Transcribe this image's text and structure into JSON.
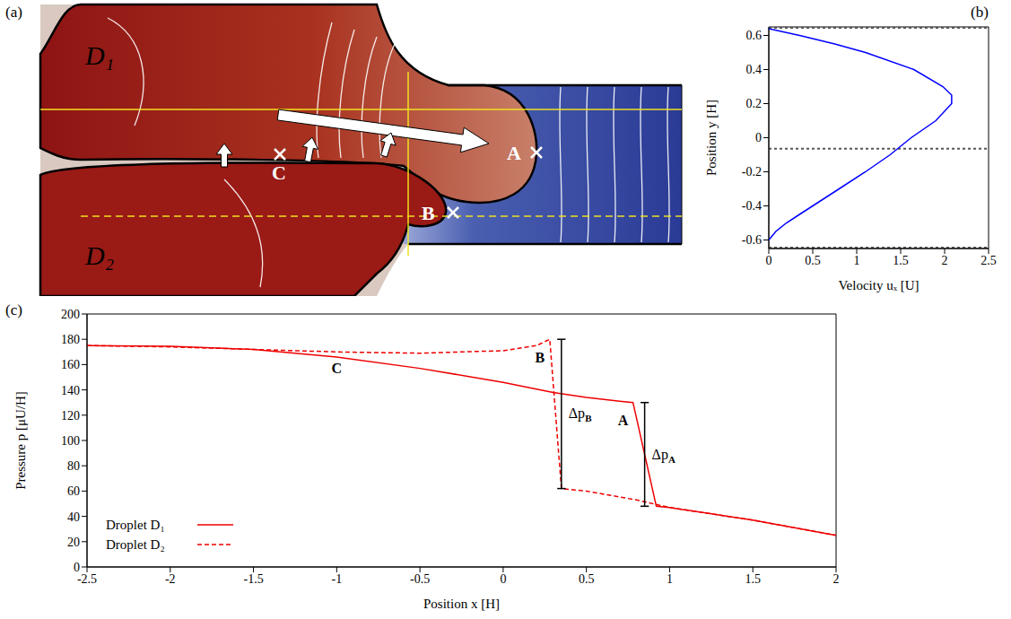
{
  "diagram": {
    "panel": "(a)",
    "labels": [
      {
        "text": "D₁"
      },
      {
        "text": "D₂"
      },
      {
        "text": "A"
      },
      {
        "text": "B"
      },
      {
        "text": "C"
      }
    ]
  },
  "chart_data": [
    {
      "panel": "(b)",
      "type": "line",
      "x_label": "Velocity uₓ [U]",
      "y_label": "Position y [H]",
      "xlim": [
        0,
        2.5
      ],
      "xticks": [
        0,
        0.5,
        1,
        1.5,
        2,
        2.5
      ],
      "ylim": [
        -0.65,
        0.65
      ],
      "yticks": [
        -0.6,
        -0.4,
        -0.2,
        0,
        0.2,
        0.4,
        0.6
      ],
      "reference_lines": [
        0.645,
        -0.065,
        -0.645
      ],
      "series": [
        {
          "color": "#0000ff",
          "line_style": "solid",
          "x": [
            0,
            0.08,
            0.2,
            0.35,
            0.5,
            0.8,
            1.1,
            1.38,
            1.62,
            1.9,
            2.08,
            2.08,
            1.98,
            1.65,
            1.1,
            0.75,
            0.35,
            0
          ],
          "values": [
            -0.6,
            -0.55,
            -0.5,
            -0.45,
            -0.4,
            -0.3,
            -0.2,
            -0.1,
            0,
            0.1,
            0.2,
            0.25,
            0.3,
            0.4,
            0.5,
            0.55,
            0.6,
            0.64
          ]
        }
      ]
    },
    {
      "panel": "(c)",
      "type": "line",
      "x_label": "Position x [H]",
      "y_label": "Pressure p [μU/H]",
      "xlim": [
        -2.5,
        2
      ],
      "xticks": [
        -2.5,
        -2,
        -1.5,
        -1,
        -0.5,
        0,
        0.5,
        1,
        1.5,
        2
      ],
      "ylim": [
        0,
        200
      ],
      "yticks": [
        0,
        20,
        40,
        60,
        80,
        100,
        120,
        140,
        160,
        180,
        200
      ],
      "legend": "lower left",
      "series": [
        {
          "name": "Droplet D₁",
          "color": "#ee0000",
          "line_style": "solid",
          "x": [
            -2.5,
            -2,
            -1.5,
            -1,
            -0.5,
            0,
            0.3,
            0.5,
            0.7,
            0.78,
            0.92,
            1,
            1.5,
            2
          ],
          "values": [
            175,
            174.5,
            172,
            166,
            157,
            146,
            138,
            134,
            131,
            130,
            48,
            47,
            37,
            25
          ]
        },
        {
          "name": "Droplet D₂",
          "color": "#ee0000",
          "line_style": "dashed",
          "x": [
            -2.5,
            -2,
            -1.5,
            -1,
            -0.5,
            0,
            0.2,
            0.28,
            0.35,
            0.42,
            0.5,
            0.8,
            1,
            1.5,
            2
          ],
          "values": [
            175,
            174,
            172,
            170,
            169,
            171,
            175,
            180,
            62,
            61,
            60,
            53,
            47,
            37,
            25
          ]
        }
      ],
      "annotations": [
        {
          "text": "C",
          "x": -1,
          "y": 153
        },
        {
          "text": "B",
          "x": 0.22,
          "y": 162
        },
        {
          "text": "A",
          "x": 0.72,
          "y": 112
        }
      ],
      "pressure_jumps": [
        {
          "label": "Δp",
          "sub": "B",
          "x": 0.35,
          "low": 62,
          "high": 180
        },
        {
          "label": "Δp",
          "sub": "A",
          "x": 0.85,
          "low": 48,
          "high": 130
        }
      ]
    }
  ]
}
